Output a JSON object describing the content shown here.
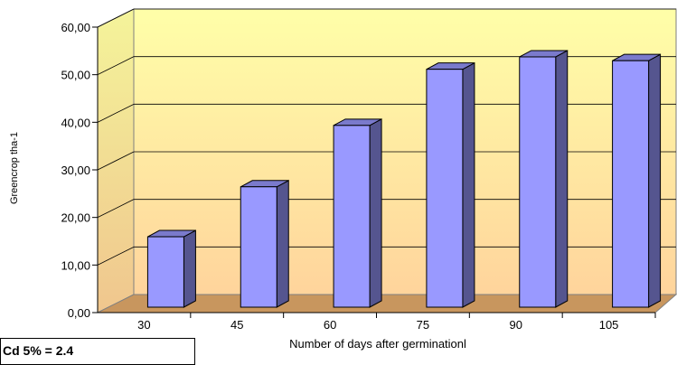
{
  "chart_data": {
    "type": "bar",
    "title": "",
    "xlabel": "Number of days after germinationl",
    "ylabel": "Greencrop tha-1",
    "categories": [
      "30",
      "45",
      "60",
      "75",
      "90",
      "105"
    ],
    "values": [
      14.8,
      25.3,
      38.2,
      50.0,
      52.6,
      51.8
    ],
    "ylim": [
      0,
      60
    ],
    "yticks": [
      "0,00",
      "10,00",
      "20,00",
      "30,00",
      "40,00",
      "50,00",
      "60,00"
    ],
    "grid": true,
    "colors": {
      "bar_front": "#9999ff",
      "bar_side": "#55558f",
      "bar_top": "#7a7acc",
      "wall_top": "#ffffa0",
      "wall_bottom": "#ffd79a",
      "floor": "#c8965e"
    }
  },
  "legend_box": {
    "text": "Cd 5%    = 2.4"
  }
}
